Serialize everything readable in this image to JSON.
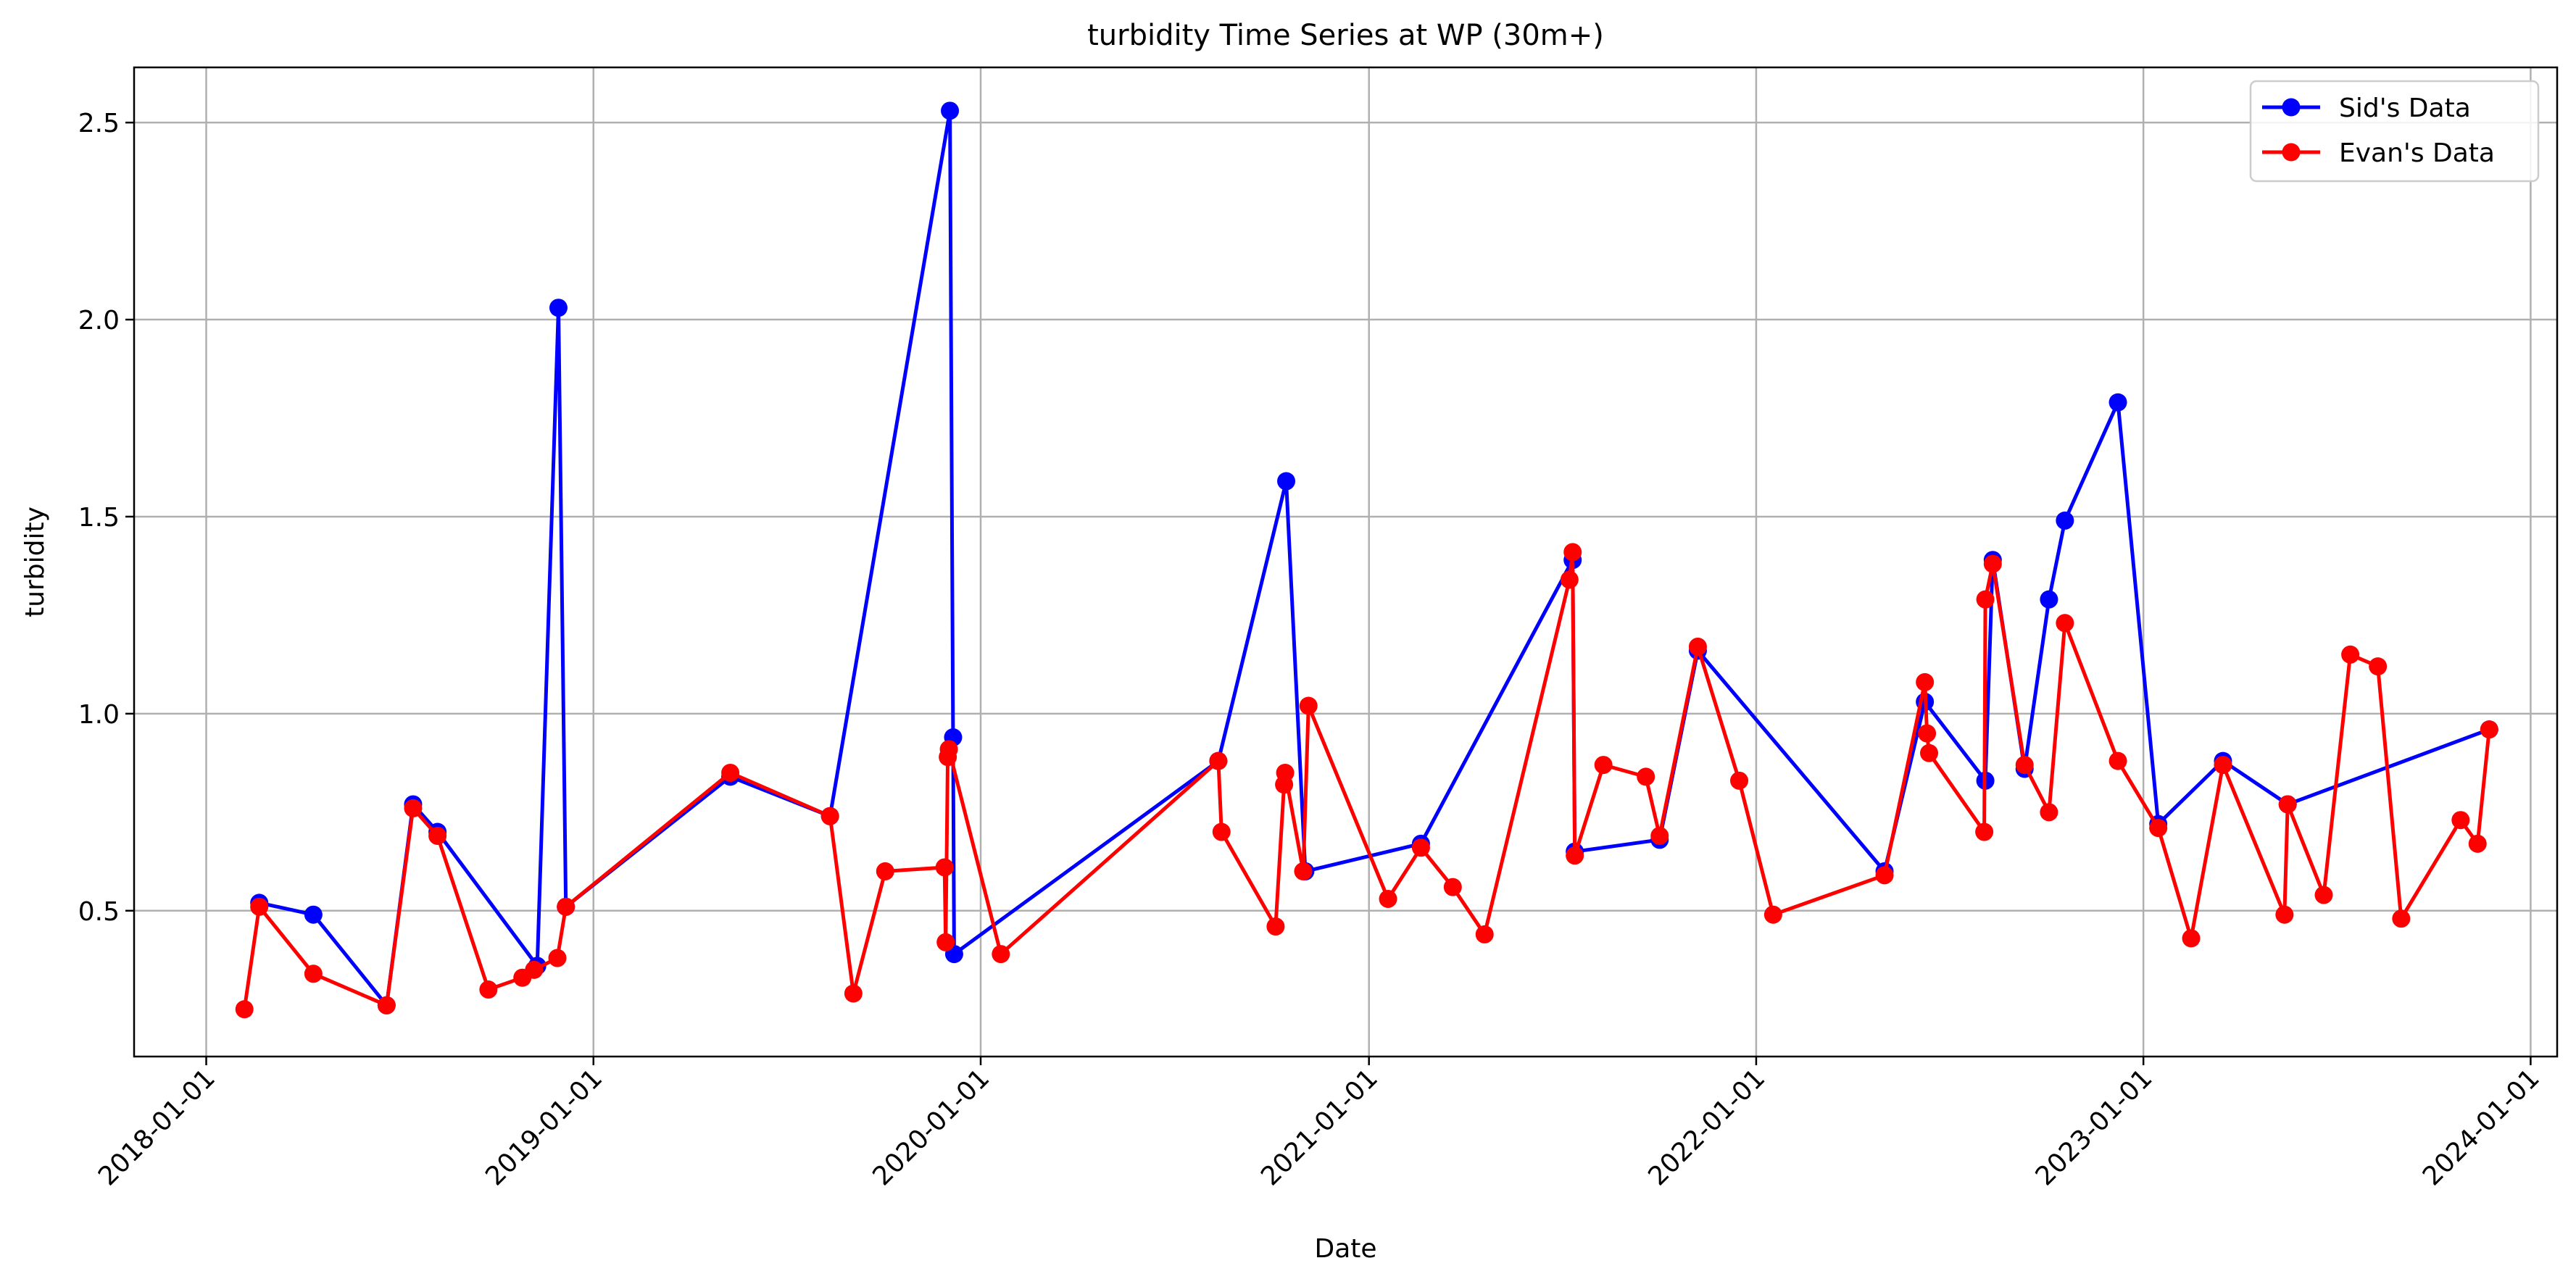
{
  "chart_data": {
    "type": "line",
    "title": "turbidity Time Series at WP (30m+)",
    "xlabel": "Date",
    "ylabel": "turbidity",
    "xlim": [
      "2017-10-25",
      "2024-01-26"
    ],
    "ylim": [
      0.13,
      2.64
    ],
    "x_ticks": [
      "2018-01-01",
      "2019-01-01",
      "2020-01-01",
      "2021-01-01",
      "2022-01-01",
      "2023-01-01",
      "2024-01-01"
    ],
    "y_ticks": [
      0.5,
      1.0,
      1.5,
      2.0,
      2.5
    ],
    "y_tick_labels": [
      "0.5",
      "1.0",
      "1.5",
      "2.0",
      "2.5"
    ],
    "grid": true,
    "legend_position": "top-right",
    "series": [
      {
        "name": "Sid's Data",
        "color": "#0000ff",
        "points": [
          [
            "2018-02-20",
            0.52
          ],
          [
            "2018-04-12",
            0.49
          ],
          [
            "2018-06-20",
            0.26
          ],
          [
            "2018-07-15",
            0.77
          ],
          [
            "2018-08-07",
            0.7
          ],
          [
            "2018-11-09",
            0.36
          ],
          [
            "2018-11-29",
            2.03
          ],
          [
            "2018-12-06",
            0.51
          ],
          [
            "2019-05-10",
            0.84
          ],
          [
            "2019-08-12",
            0.74
          ],
          [
            "2019-12-03",
            2.53
          ],
          [
            "2019-12-06",
            0.94
          ],
          [
            "2019-12-07",
            0.39
          ],
          [
            "2020-08-12",
            0.88
          ],
          [
            "2020-10-15",
            1.59
          ],
          [
            "2020-11-02",
            0.6
          ],
          [
            "2021-02-19",
            0.67
          ],
          [
            "2021-07-12",
            1.39
          ],
          [
            "2021-07-14",
            0.65
          ],
          [
            "2021-10-02",
            0.68
          ],
          [
            "2021-11-07",
            1.16
          ],
          [
            "2022-05-02",
            0.6
          ],
          [
            "2022-06-09",
            1.03
          ],
          [
            "2022-08-05",
            0.83
          ],
          [
            "2022-08-12",
            1.39
          ],
          [
            "2022-09-11",
            0.86
          ],
          [
            "2022-10-04",
            1.29
          ],
          [
            "2022-10-19",
            1.49
          ],
          [
            "2022-12-08",
            1.79
          ],
          [
            "2023-01-15",
            0.72
          ],
          [
            "2023-03-17",
            0.88
          ],
          [
            "2023-05-17",
            0.77
          ],
          [
            "2023-11-23",
            0.96
          ]
        ]
      },
      {
        "name": "Evan's Data",
        "color": "#ff0000",
        "points": [
          [
            "2018-02-06",
            0.25
          ],
          [
            "2018-02-20",
            0.51
          ],
          [
            "2018-04-12",
            0.34
          ],
          [
            "2018-06-20",
            0.26
          ],
          [
            "2018-07-15",
            0.76
          ],
          [
            "2018-08-07",
            0.69
          ],
          [
            "2018-09-24",
            0.3
          ],
          [
            "2018-10-26",
            0.33
          ],
          [
            "2018-11-06",
            0.35
          ],
          [
            "2018-11-28",
            0.38
          ],
          [
            "2018-12-06",
            0.51
          ],
          [
            "2019-05-10",
            0.85
          ],
          [
            "2019-08-12",
            0.74
          ],
          [
            "2019-09-03",
            0.29
          ],
          [
            "2019-10-03",
            0.6
          ],
          [
            "2019-11-28",
            0.61
          ],
          [
            "2019-11-29",
            0.42
          ],
          [
            "2019-12-01",
            0.89
          ],
          [
            "2019-12-02",
            0.91
          ],
          [
            "2020-01-20",
            0.39
          ],
          [
            "2020-08-12",
            0.88
          ],
          [
            "2020-08-15",
            0.7
          ],
          [
            "2020-10-05",
            0.46
          ],
          [
            "2020-10-13",
            0.82
          ],
          [
            "2020-10-14",
            0.85
          ],
          [
            "2020-10-31",
            0.6
          ],
          [
            "2020-11-05",
            1.02
          ],
          [
            "2021-01-19",
            0.53
          ],
          [
            "2021-02-19",
            0.66
          ],
          [
            "2021-03-21",
            0.56
          ],
          [
            "2021-04-20",
            0.44
          ],
          [
            "2021-07-09",
            1.34
          ],
          [
            "2021-07-12",
            1.41
          ],
          [
            "2021-07-14",
            0.64
          ],
          [
            "2021-08-10",
            0.87
          ],
          [
            "2021-09-19",
            0.84
          ],
          [
            "2021-10-02",
            0.69
          ],
          [
            "2021-11-07",
            1.17
          ],
          [
            "2021-12-16",
            0.83
          ],
          [
            "2022-01-17",
            0.49
          ],
          [
            "2022-05-02",
            0.59
          ],
          [
            "2022-06-09",
            1.08
          ],
          [
            "2022-06-11",
            0.95
          ],
          [
            "2022-06-13",
            0.9
          ],
          [
            "2022-08-04",
            0.7
          ],
          [
            "2022-08-05",
            1.29
          ],
          [
            "2022-08-12",
            1.38
          ],
          [
            "2022-09-11",
            0.87
          ],
          [
            "2022-10-04",
            0.75
          ],
          [
            "2022-10-19",
            1.23
          ],
          [
            "2022-12-08",
            0.88
          ],
          [
            "2023-01-15",
            0.71
          ],
          [
            "2023-02-15",
            0.43
          ],
          [
            "2023-03-17",
            0.87
          ],
          [
            "2023-05-14",
            0.49
          ],
          [
            "2023-05-17",
            0.77
          ],
          [
            "2023-06-20",
            0.54
          ],
          [
            "2023-07-15",
            1.15
          ],
          [
            "2023-08-10",
            1.12
          ],
          [
            "2023-09-01",
            0.48
          ],
          [
            "2023-10-27",
            0.73
          ],
          [
            "2023-11-12",
            0.67
          ],
          [
            "2023-11-23",
            0.96
          ]
        ]
      }
    ]
  }
}
